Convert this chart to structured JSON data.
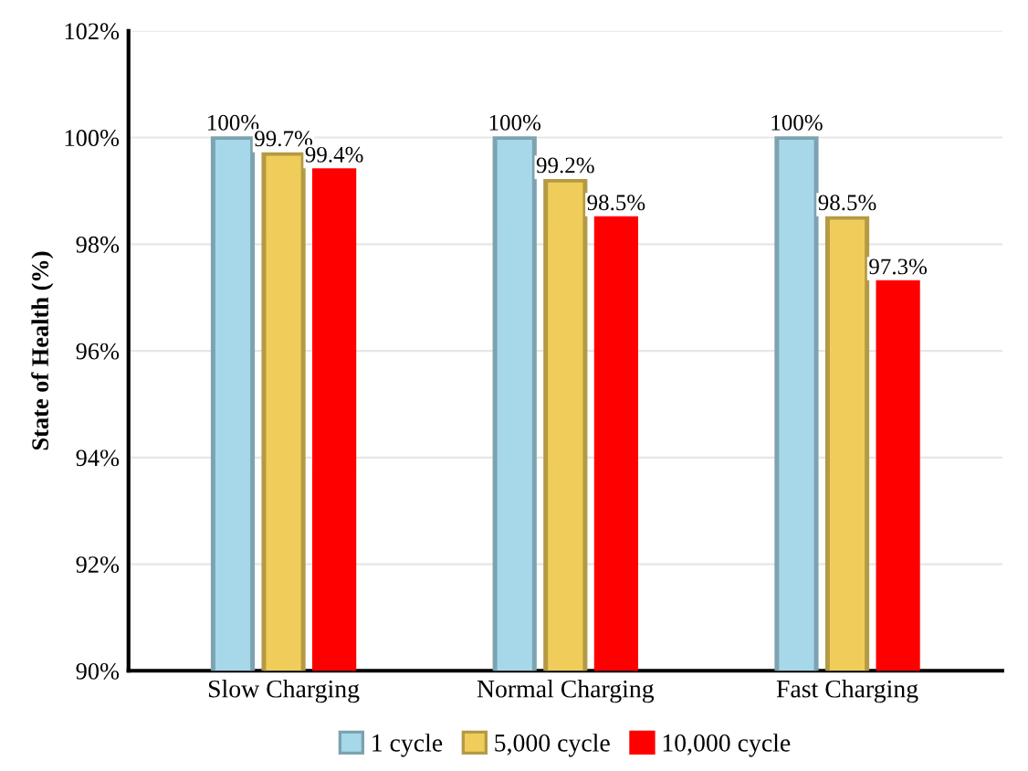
{
  "chart_data": {
    "type": "bar",
    "ylabel": "State of Health (%)",
    "categories": [
      "Slow Charging",
      "Normal Charging",
      "Fast Charging"
    ],
    "series": [
      {
        "name": "1 cycle",
        "color": "#a6d8ea",
        "values": [
          100,
          100,
          100
        ],
        "value_labels": [
          "100%",
          "100%",
          "100%"
        ]
      },
      {
        "name": "5,000 cycle",
        "color": "#f0cd5a",
        "values": [
          99.7,
          99.2,
          98.5
        ],
        "value_labels": [
          "99.7%",
          "99.2%",
          "98.5%"
        ]
      },
      {
        "name": "10,000 cycle",
        "color": "#ff0000",
        "values": [
          99.4,
          98.5,
          97.3
        ],
        "value_labels": [
          "99.4%",
          "98.5%",
          "97.3%"
        ]
      }
    ],
    "ylim": [
      90,
      102
    ],
    "yticks": [
      {
        "value": 90,
        "label": "90%"
      },
      {
        "value": 92,
        "label": "92%"
      },
      {
        "value": 94,
        "label": "94%"
      },
      {
        "value": 96,
        "label": "96%"
      },
      {
        "value": 98,
        "label": "98%"
      },
      {
        "value": 100,
        "label": "100%"
      },
      {
        "value": 102,
        "label": "102%"
      }
    ],
    "grid": "y",
    "legend": "bottom"
  }
}
